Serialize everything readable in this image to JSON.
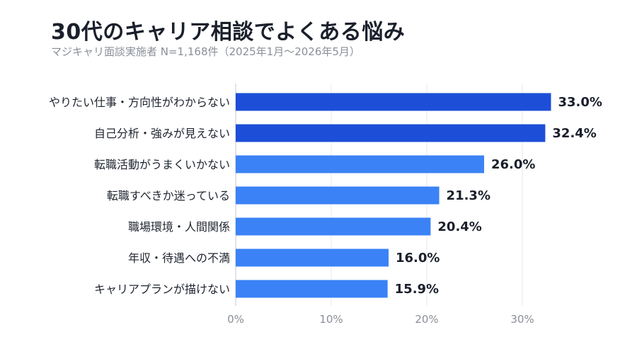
{
  "header": {
    "title": "30代のキャリア相談でよくある悩み",
    "subtitle": "マジキャリ面談実施者 N=1,168件（2025年1月〜2026年5月）"
  },
  "chart_data": {
    "type": "bar",
    "orientation": "horizontal",
    "title": "30代のキャリア相談でよくある悩み",
    "subtitle": "マジキャリ面談実施者 N=1,168件（2025年1月〜2026年5月）",
    "categories": [
      "やりたい仕事・方向性がわからない",
      "自己分析・強みが見えない",
      "転職活動がうまくいかない",
      "転職すべきか迷っている",
      "職場環境・人間関係",
      "年収・待遇への不満",
      "キャリアプランが描けない"
    ],
    "values": [
      33.0,
      32.4,
      26.0,
      21.3,
      20.4,
      16.0,
      15.9
    ],
    "value_labels": [
      "33.0%",
      "32.4%",
      "26.0%",
      "21.3%",
      "20.4%",
      "16.0%",
      "15.9%"
    ],
    "highlight_top": 2,
    "xlim": [
      0,
      36
    ],
    "xticks": [
      0,
      10,
      20,
      30
    ],
    "xtick_labels": [
      "0%",
      "10%",
      "20%",
      "30%"
    ],
    "grid": true,
    "colors": {
      "highlight": "#1d4ed8",
      "normal": "#3b82f6"
    }
  }
}
